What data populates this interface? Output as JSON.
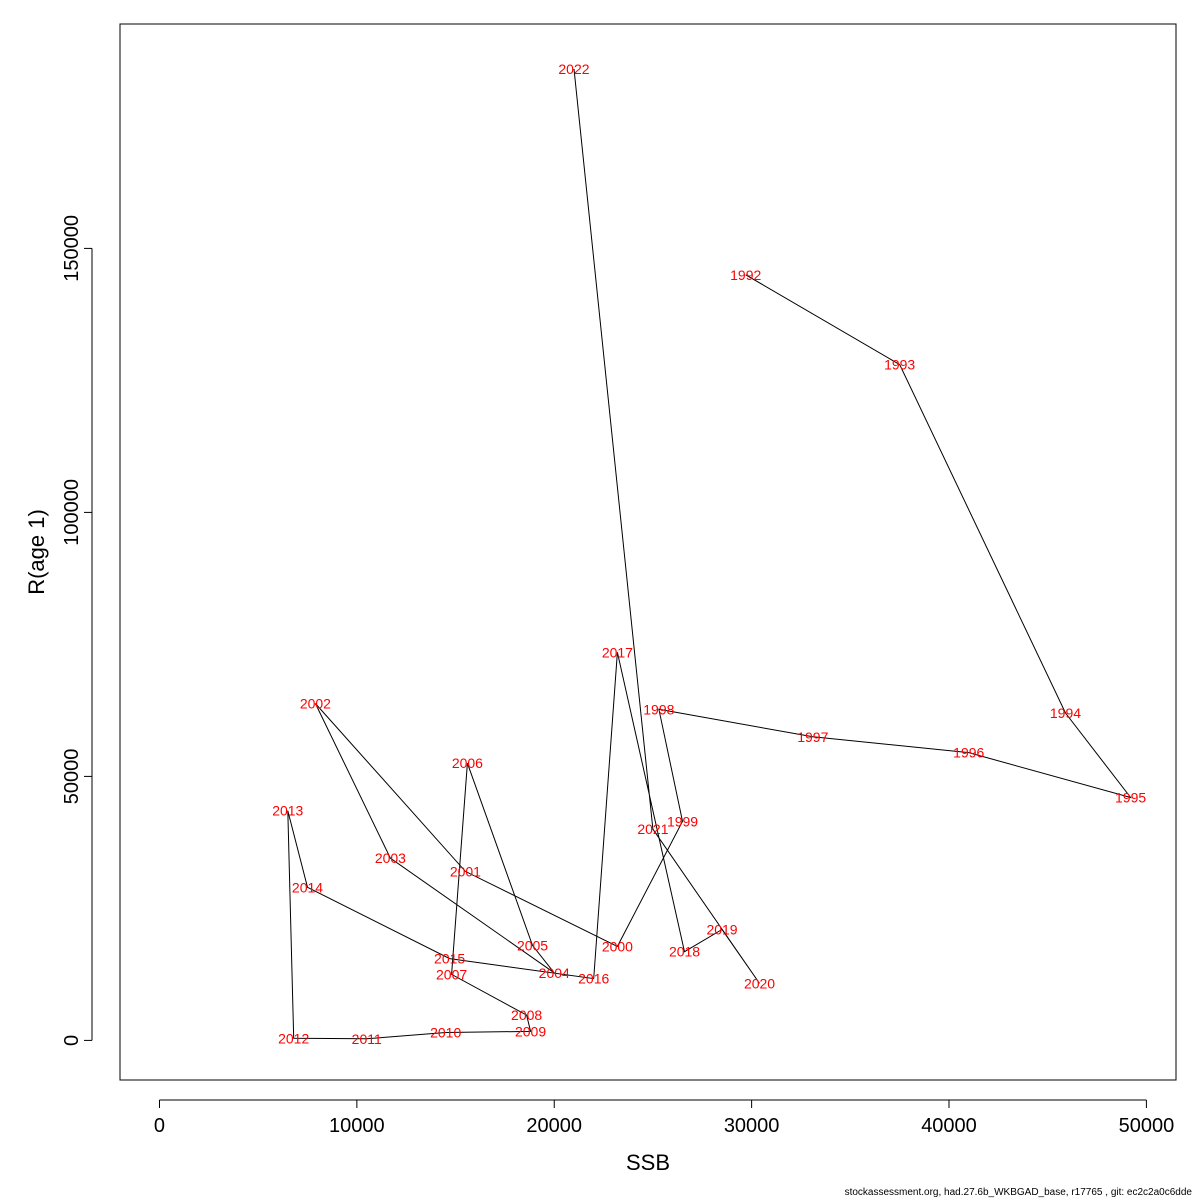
{
  "chart_data": {
    "type": "line",
    "xlabel": "SSB",
    "ylabel": "R(age 1)",
    "xlim": [
      -2000,
      51500
    ],
    "ylim": [
      -7500,
      192500
    ],
    "xticks": [
      0,
      10000,
      20000,
      30000,
      40000,
      50000
    ],
    "yticks": [
      0,
      50000,
      100000,
      150000
    ],
    "line_color": "#000000",
    "label_color": "#ff0000",
    "points": [
      {
        "label": "1992",
        "x": 29700,
        "y": 145000
      },
      {
        "label": "1993",
        "x": 37500,
        "y": 128000
      },
      {
        "label": "1994",
        "x": 45900,
        "y": 62000
      },
      {
        "label": "1995",
        "x": 49200,
        "y": 46000
      },
      {
        "label": "1996",
        "x": 41000,
        "y": 54500
      },
      {
        "label": "1997",
        "x": 33100,
        "y": 57500
      },
      {
        "label": "1998",
        "x": 25300,
        "y": 62700
      },
      {
        "label": "1999",
        "x": 26500,
        "y": 41500
      },
      {
        "label": "2000",
        "x": 23200,
        "y": 17800
      },
      {
        "label": "2001",
        "x": 15500,
        "y": 32000
      },
      {
        "label": "2002",
        "x": 7900,
        "y": 63800
      },
      {
        "label": "2003",
        "x": 11700,
        "y": 34500
      },
      {
        "label": "2004",
        "x": 20000,
        "y": 12800
      },
      {
        "label": "2005",
        "x": 18900,
        "y": 18000
      },
      {
        "label": "2006",
        "x": 15600,
        "y": 52500
      },
      {
        "label": "2007",
        "x": 14800,
        "y": 12500
      },
      {
        "label": "2008",
        "x": 18600,
        "y": 4800
      },
      {
        "label": "2009",
        "x": 18800,
        "y": 1700
      },
      {
        "label": "2010",
        "x": 14500,
        "y": 1500
      },
      {
        "label": "2011",
        "x": 10500,
        "y": 300
      },
      {
        "label": "2012",
        "x": 6800,
        "y": 400
      },
      {
        "label": "2013",
        "x": 6500,
        "y": 43500
      },
      {
        "label": "2014",
        "x": 7500,
        "y": 29000
      },
      {
        "label": "2015",
        "x": 14700,
        "y": 15500
      },
      {
        "label": "2016",
        "x": 22000,
        "y": 11700
      },
      {
        "label": "2017",
        "x": 23200,
        "y": 73500
      },
      {
        "label": "2018",
        "x": 26600,
        "y": 16800
      },
      {
        "label": "2019",
        "x": 28500,
        "y": 21000
      },
      {
        "label": "2020",
        "x": 30400,
        "y": 10800
      },
      {
        "label": "2021",
        "x": 25000,
        "y": 40000
      },
      {
        "label": "2022",
        "x": 21000,
        "y": 184000
      }
    ]
  },
  "footer": "stockassessment.org, had.27.6b_WKBGAD_base, r17765 , git: ec2c2a0c6dde"
}
